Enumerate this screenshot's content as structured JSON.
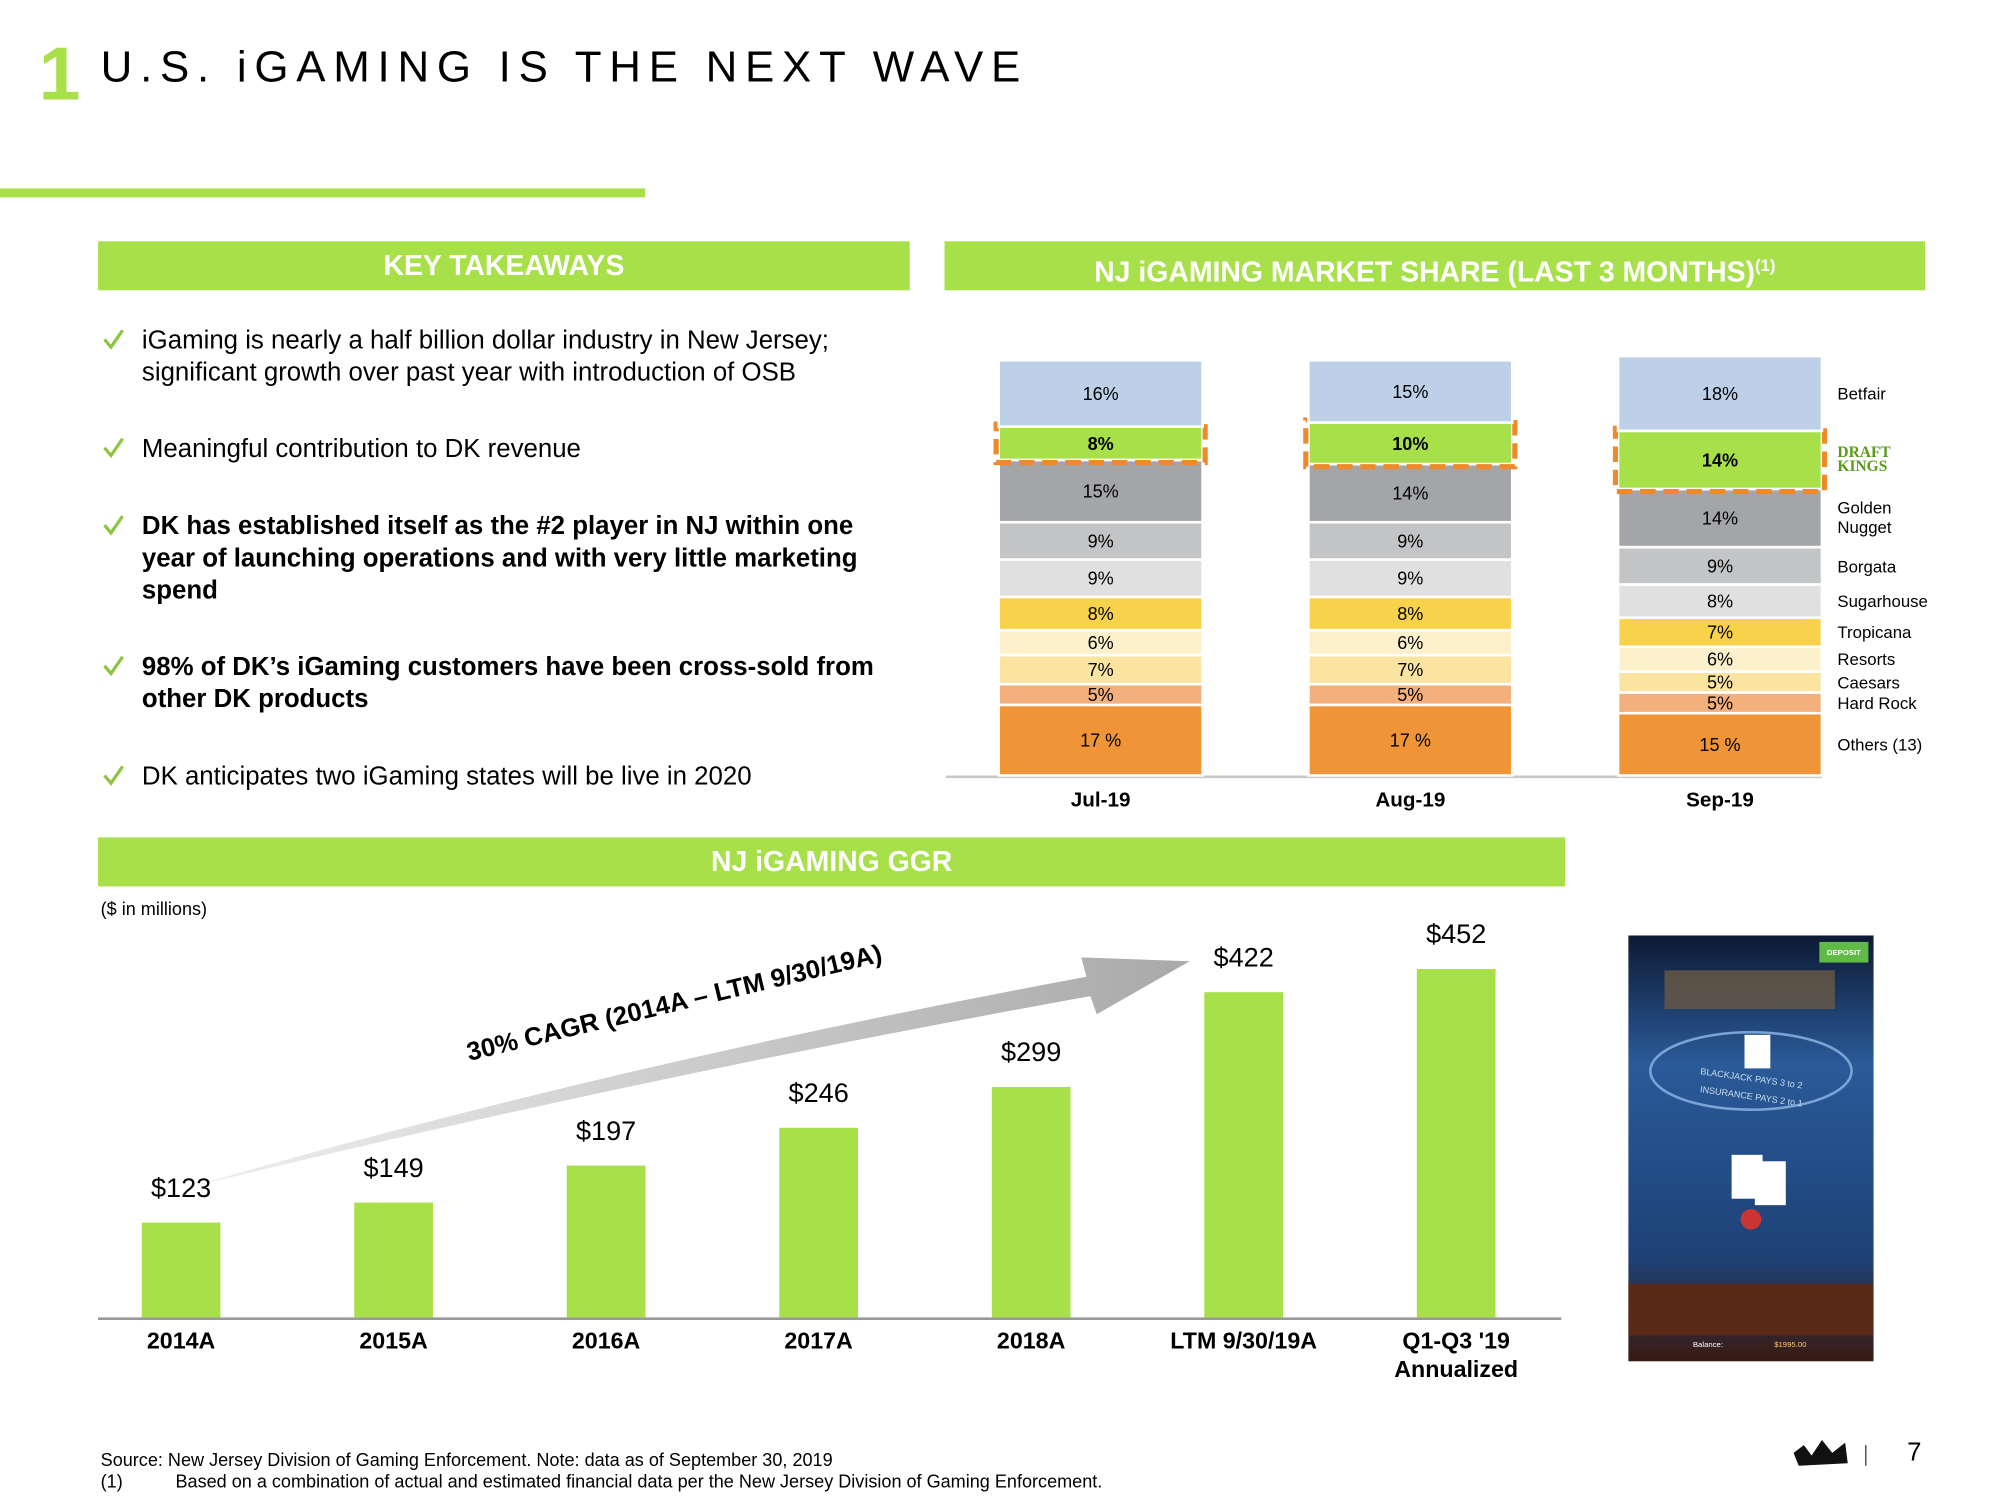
{
  "header": {
    "number": "1",
    "title": "U.S. iGAMING IS THE NEXT WAVE"
  },
  "takeaways": {
    "title": "KEY TAKEAWAYS",
    "items": [
      {
        "text": "iGaming is nearly a half billion dollar industry in New Jersey; significant growth over past year with introduction of OSB",
        "bold": false
      },
      {
        "text": "Meaningful contribution to DK revenue",
        "bold": false
      },
      {
        "text": "DK has established itself as the #2 player in NJ within one year of launching operations and with very little marketing spend",
        "bold": true
      },
      {
        "text": "98% of DK’s iGaming customers have been cross-sold from other DK products",
        "bold": true
      },
      {
        "text": "DK anticipates two iGaming states will be live in 2020",
        "bold": false
      }
    ]
  },
  "chart_data": [
    {
      "type": "stacked_bar",
      "title": "NJ iGAMING MARKET SHARE (LAST 3 MONTHS)",
      "title_note": "(1)",
      "categories": [
        "Jul-19",
        "Aug-19",
        "Sep-19"
      ],
      "series": [
        {
          "name": "Others (13)",
          "color": "#ef9437",
          "values": [
            17,
            17,
            15
          ],
          "value_labels": [
            "17 %",
            "17 %",
            "15 %"
          ]
        },
        {
          "name": "Hard Rock",
          "color": "#f3b07c",
          "values": [
            5,
            5,
            5
          ],
          "value_labels": [
            "5%",
            "5%",
            "5%"
          ]
        },
        {
          "name": "Caesars",
          "color": "#fbe3a0",
          "values": [
            7,
            7,
            5
          ],
          "value_labels": [
            "7%",
            "7%",
            "5%"
          ]
        },
        {
          "name": "Resorts",
          "color": "#fdf1cc",
          "values": [
            6,
            6,
            6
          ],
          "value_labels": [
            "6%",
            "6%",
            "6%"
          ]
        },
        {
          "name": "Tropicana",
          "color": "#f8d24a",
          "values": [
            8,
            8,
            7
          ],
          "value_labels": [
            "8%",
            "8%",
            "7%"
          ]
        },
        {
          "name": "Sugarhouse",
          "color": "#e0e0e1",
          "values": [
            9,
            9,
            8
          ],
          "value_labels": [
            "9%",
            "9%",
            "8%"
          ]
        },
        {
          "name": "Borgata",
          "color": "#c3c4c6",
          "values": [
            9,
            9,
            9
          ],
          "value_labels": [
            "9%",
            "9%",
            "9%"
          ]
        },
        {
          "name": "Golden Nugget",
          "color": "#a3a5a8",
          "values": [
            15,
            14,
            14
          ],
          "value_labels": [
            "15%",
            "14%",
            "14%"
          ]
        },
        {
          "name": "DRAFT KINGS",
          "color": "#a8e04a",
          "values": [
            8,
            10,
            14
          ],
          "value_labels": [
            "8%",
            "10%",
            "14%"
          ],
          "highlight": true
        },
        {
          "name": "Betfair",
          "color": "#bdd0e8",
          "values": [
            16,
            15,
            18
          ],
          "value_labels": [
            "16%",
            "15%",
            "18%"
          ]
        }
      ]
    },
    {
      "type": "bar",
      "title": "NJ iGAMING GGR",
      "subtitle": "($ in millions)",
      "categories": [
        "2014A",
        "2015A",
        "2016A",
        "2017A",
        "2018A",
        "LTM 9/30/19A",
        "Q1-Q3 '19 Annualized"
      ],
      "values": [
        123,
        149,
        197,
        246,
        299,
        422,
        452
      ],
      "value_labels": [
        "$123",
        "$149",
        "$197",
        "$246",
        "$299",
        "$422",
        "$452"
      ],
      "color": "#a8e04a",
      "annotation": "30% CAGR (2014A – LTM 9/30/19A)"
    }
  ],
  "screenshot": {
    "button": "DEPOSIT",
    "table_text": "BLACKJACK PAYS 3 to 2",
    "insurance_text": "INSURANCE PAYS 2 to 1",
    "balance_label": "Balance:",
    "balance": "$1995.00"
  },
  "footer": {
    "source": "Source:  New Jersey Division of Gaming Enforcement. Note: data as of September 30, 2019",
    "note_marker": "(1)",
    "note": "Based on a combination of actual and estimated financial data per the New Jersey Division of Gaming Enforcement.",
    "page_number": "7"
  }
}
